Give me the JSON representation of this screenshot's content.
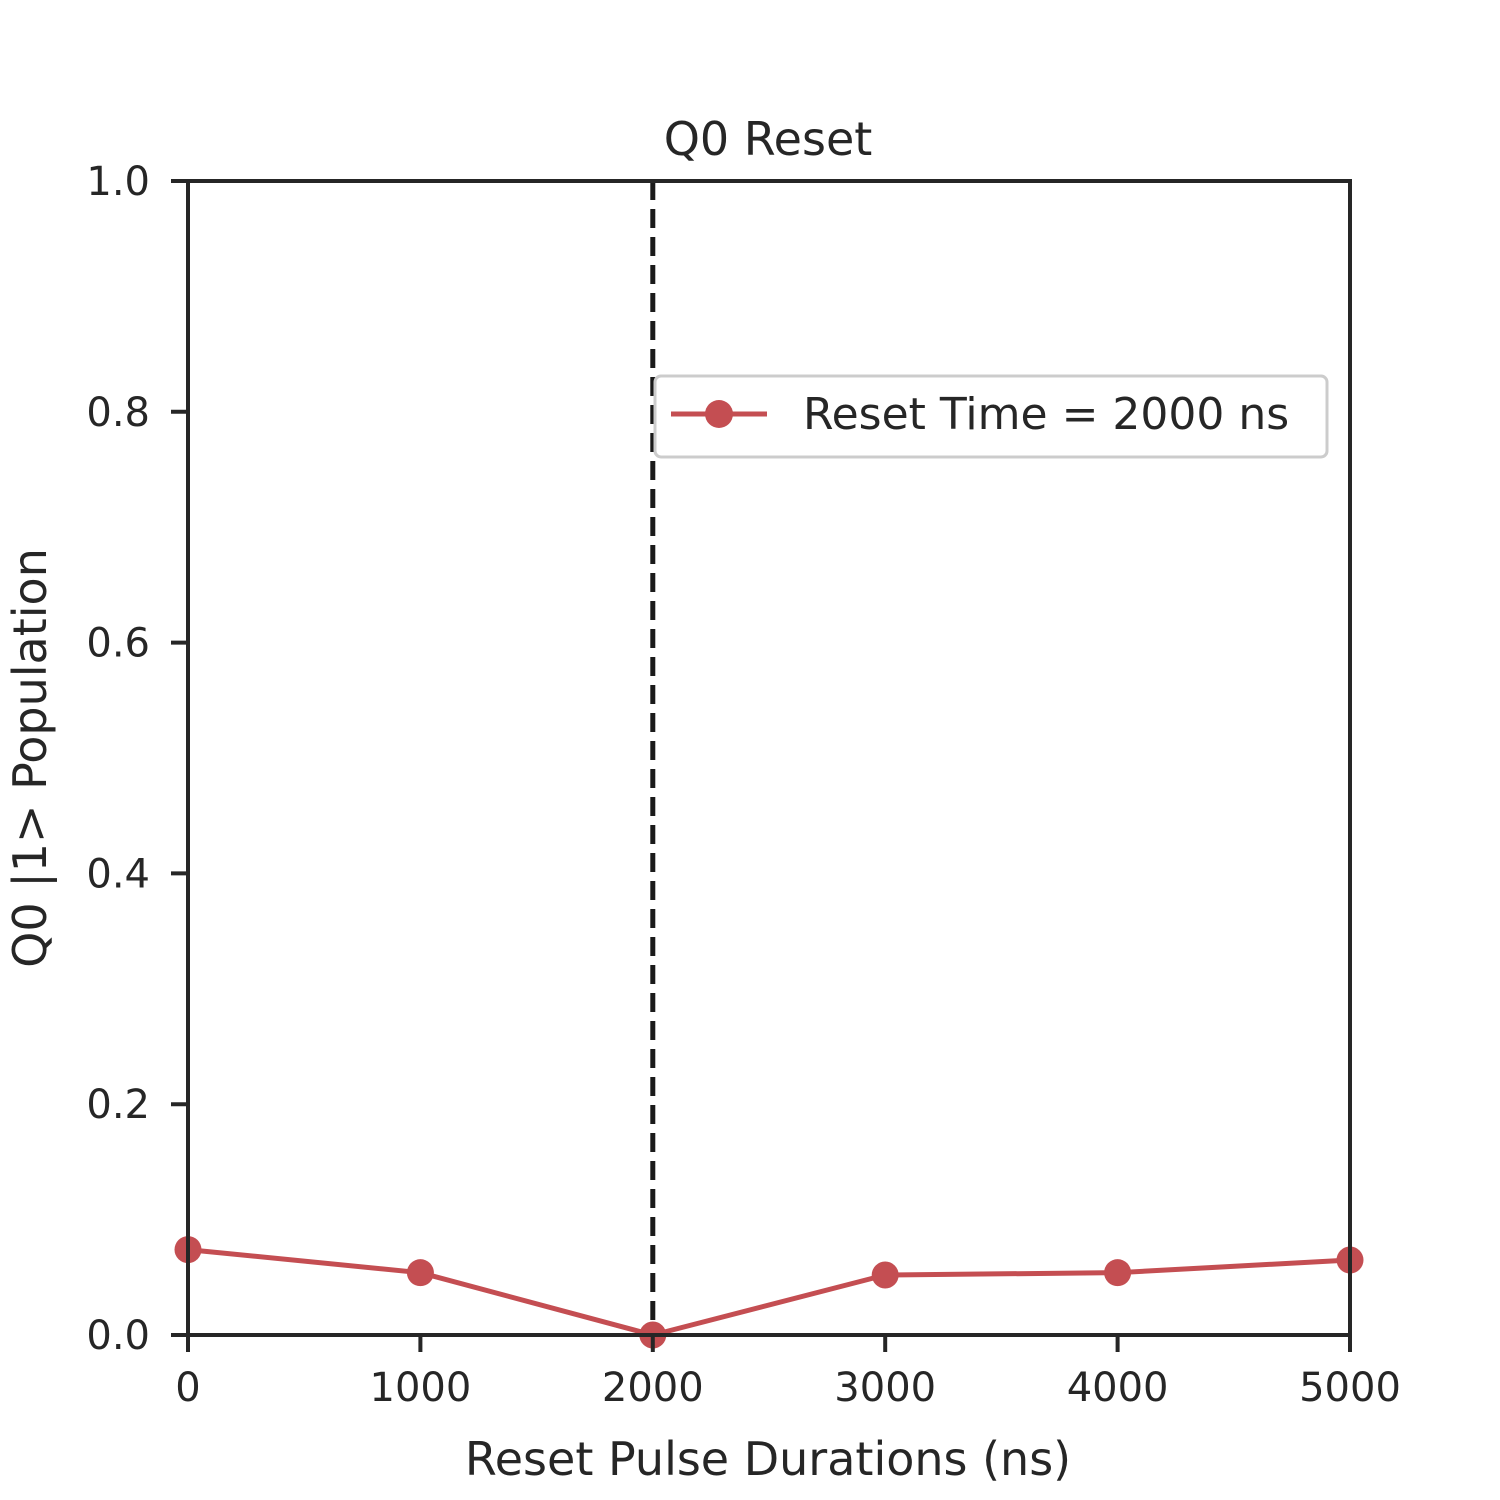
{
  "chart_data": {
    "type": "line",
    "title": "Q0 Reset",
    "xlabel": "Reset Pulse Durations (ns)",
    "ylabel": "Q0 |1> Population",
    "xlim": [
      0,
      5000
    ],
    "ylim": [
      0,
      1.0
    ],
    "xticks": [
      "0",
      "1000",
      "2000",
      "3000",
      "4000",
      "5000"
    ],
    "yticks": [
      "0.0",
      "0.2",
      "0.4",
      "0.6",
      "0.8",
      "1.0"
    ],
    "grid": false,
    "legend_position": "upper-right",
    "reference_line": {
      "x": 2000,
      "style": "dashed",
      "color": "#1a1a1a"
    },
    "series": [
      {
        "name": "Reset Time = 2000 ns",
        "color": "#c44e52",
        "marker": "circle",
        "x": [
          0,
          1000,
          2000,
          3000,
          4000,
          5000
        ],
        "y": [
          0.074,
          0.054,
          0.0,
          0.052,
          0.054,
          0.065
        ]
      }
    ]
  }
}
